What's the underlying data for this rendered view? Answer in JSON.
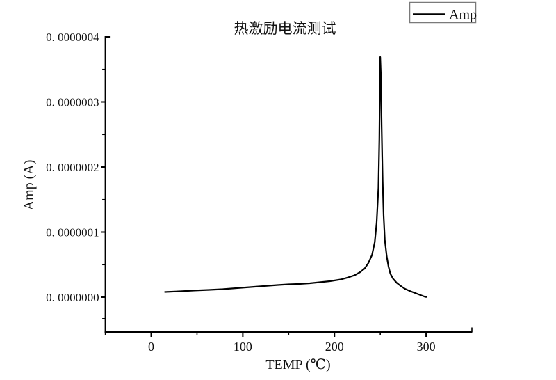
{
  "page": {
    "background": "#ffffff"
  },
  "chart_data": {
    "type": "line",
    "title": "热激励电流测试",
    "xlabel": "TEMP (℃)",
    "ylabel": "Amp (A)",
    "grid": false,
    "frame": "left-bottom-axes-only",
    "line_color": "#000000",
    "legend": {
      "position": "top-right-outside",
      "border_color": "#7a7a7a",
      "entries": [
        {
          "label": "Amp",
          "color": "#000000"
        }
      ]
    },
    "x_axis": {
      "label": "TEMP (℃)",
      "range": [
        -50,
        350
      ],
      "ticks": [
        {
          "value": 0,
          "label": "0"
        },
        {
          "value": 100,
          "label": "100"
        },
        {
          "value": 200,
          "label": "200"
        },
        {
          "value": 300,
          "label": "300"
        }
      ],
      "minor_ticks": [
        -50,
        50,
        150,
        250
      ],
      "end_minor_ticks": [
        350
      ]
    },
    "y_axis": {
      "label": "Amp (A)",
      "range": [
        -5.35e-08,
        4e-07
      ],
      "ticks": [
        {
          "value": 0.0,
          "label": "0. 0000000"
        },
        {
          "value": 1e-07,
          "label": "0. 0000001"
        },
        {
          "value": 2e-07,
          "label": "0. 0000002"
        },
        {
          "value": 3e-07,
          "label": "0. 0000003"
        },
        {
          "value": 4e-07,
          "label": "0. 0000004",
          "end": true
        }
      ],
      "minor_ticks": [
        -3.3e-08,
        5e-08,
        1.5e-07,
        2.5e-07,
        3.5e-07
      ]
    },
    "series": [
      {
        "name": "Amp",
        "color": "#000000",
        "peak": {
          "temp_c": 250,
          "amp_a": 3.69e-07
        },
        "points": [
          [
            15,
            8e-09
          ],
          [
            32,
            9.1e-09
          ],
          [
            47,
            1.02e-08
          ],
          [
            63,
            1.12e-08
          ],
          [
            78,
            1.23e-08
          ],
          [
            93,
            1.39e-08
          ],
          [
            108,
            1.55e-08
          ],
          [
            123,
            1.71e-08
          ],
          [
            138,
            1.87e-08
          ],
          [
            150,
            1.98e-08
          ],
          [
            161,
            2.03e-08
          ],
          [
            173,
            2.14e-08
          ],
          [
            184,
            2.3e-08
          ],
          [
            195,
            2.46e-08
          ],
          [
            207,
            2.73e-08
          ],
          [
            214,
            3e-08
          ],
          [
            222,
            3.37e-08
          ],
          [
            228,
            3.85e-08
          ],
          [
            233,
            4.4e-08
          ],
          [
            237,
            5.25e-08
          ],
          [
            241,
            6.5e-08
          ],
          [
            244,
            8.45e-08
          ],
          [
            246,
            1.14e-07
          ],
          [
            248,
            1.68e-07
          ],
          [
            249,
            2.43e-07
          ],
          [
            249.6,
            3.28e-07
          ],
          [
            250,
            3.69e-07
          ],
          [
            250.7,
            3.39e-07
          ],
          [
            251.5,
            2.64e-07
          ],
          [
            252.6,
            1.79e-07
          ],
          [
            253.7,
            1.25e-07
          ],
          [
            255,
            8.8e-08
          ],
          [
            257,
            6.3e-08
          ],
          [
            259,
            4.7e-08
          ],
          [
            261,
            3.6e-08
          ],
          [
            264,
            2.83e-08
          ],
          [
            268,
            2.19e-08
          ],
          [
            273,
            1.66e-08
          ],
          [
            277,
            1.28e-08
          ],
          [
            283,
            9.1e-09
          ],
          [
            288,
            6.4e-09
          ],
          [
            293,
            3.7e-09
          ],
          [
            298,
            1.1e-09
          ],
          [
            300,
            3e-10
          ]
        ]
      }
    ]
  }
}
